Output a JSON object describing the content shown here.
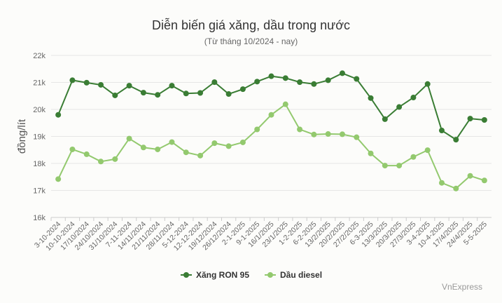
{
  "chart_data": {
    "type": "line",
    "title": "Diễn biến giá xăng, dầu trong nước",
    "subtitle": "(Từ tháng 10/2024 - nay)",
    "ylabel": "đồng/lít",
    "ylim": [
      16000,
      22000
    ],
    "yticks": [
      16000,
      17000,
      18000,
      19000,
      20000,
      21000,
      22000
    ],
    "ytick_labels": [
      "16k",
      "17k",
      "18k",
      "19k",
      "20k",
      "21k",
      "22k"
    ],
    "grid": true,
    "legend_position": "bottom-center",
    "categories": [
      "3-10-2024",
      "10-10-2024",
      "17/10/2024",
      "24/10/2024",
      "31/10/2024",
      "7-11-2024",
      "14/11/2024",
      "21/11/2024",
      "28/11/2024",
      "5-12-2024",
      "12-12-2024",
      "19/12/2024",
      "26/12/2024",
      "2-1-2025",
      "9-1-2025",
      "16/1/2025",
      "23/1/2025",
      "1-2-2025",
      "6-2-2025",
      "13/2/2025",
      "20/2/2025",
      "27/2/2025",
      "6-3-2025",
      "13/3/2025",
      "20/3/2025",
      "27/3/2025",
      "3-4-2025",
      "10-4-2025",
      "17/4/2025",
      "24/4/2025",
      "5-5-2025"
    ],
    "series": [
      {
        "name": "Xăng RON 95",
        "color": "#3a7d34",
        "values": [
          19800,
          21080,
          20990,
          20910,
          20520,
          20880,
          20620,
          20540,
          20880,
          20590,
          20610,
          21010,
          20570,
          20750,
          21030,
          21230,
          21160,
          21010,
          20940,
          21080,
          21340,
          21130,
          20420,
          19640,
          20090,
          20440,
          20940,
          19220,
          18880,
          19660,
          19610
        ]
      },
      {
        "name": "Dầu diesel",
        "color": "#93c96e",
        "values": [
          17420,
          18520,
          18340,
          18070,
          18160,
          18920,
          18590,
          18520,
          18790,
          18410,
          18290,
          18750,
          18640,
          18780,
          19260,
          19800,
          20190,
          19260,
          19070,
          19090,
          19080,
          18970,
          18370,
          17920,
          17920,
          18240,
          18490,
          17280,
          17070,
          17540,
          17370
        ]
      }
    ]
  },
  "credit": "VnExpress",
  "colors": {
    "grid": "#e6e6e6",
    "axis_text": "#666666"
  }
}
